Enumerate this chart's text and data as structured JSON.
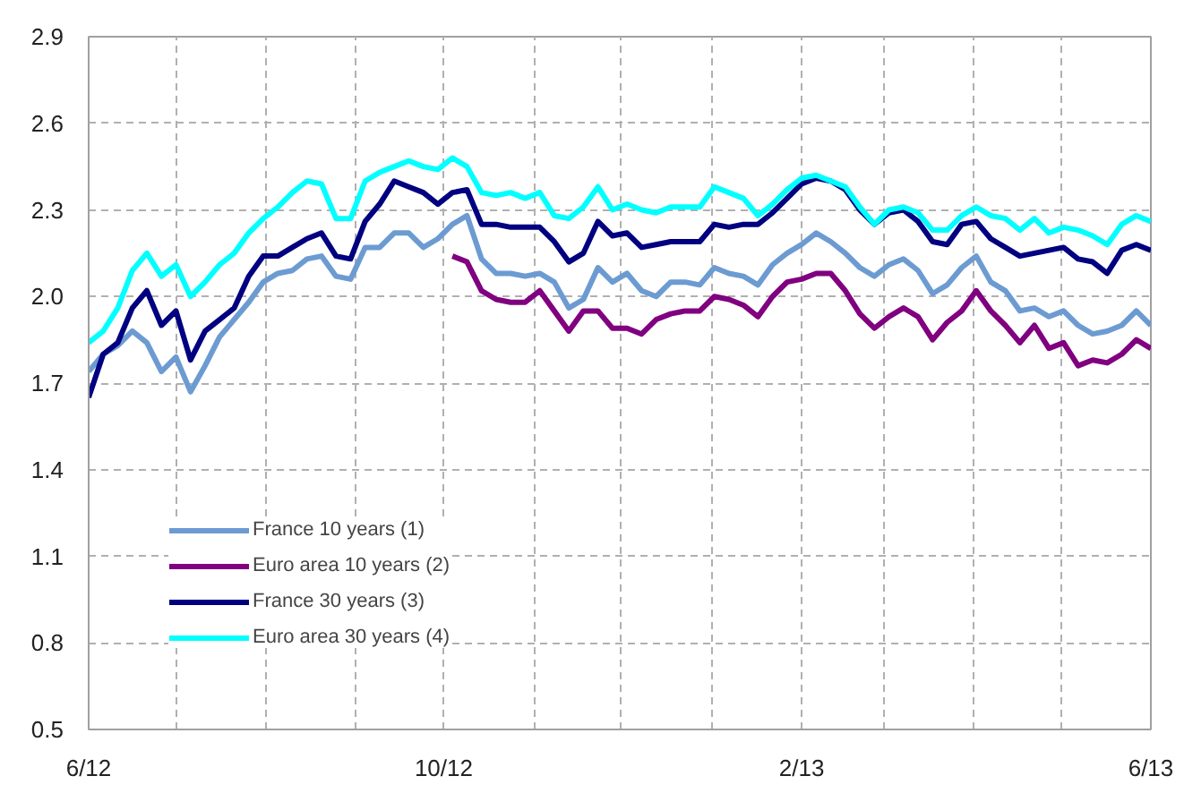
{
  "chart_data": {
    "type": "line",
    "x": [
      "2012-06-01",
      "2012-06-06",
      "2012-06-11",
      "2012-06-16",
      "2012-06-21",
      "2012-06-26",
      "2012-07-01",
      "2012-07-06",
      "2012-07-11",
      "2012-07-16",
      "2012-07-21",
      "2012-07-26",
      "2012-07-31",
      "2012-08-05",
      "2012-08-10",
      "2012-08-15",
      "2012-08-20",
      "2012-08-25",
      "2012-08-30",
      "2012-09-04",
      "2012-09-09",
      "2012-09-14",
      "2012-09-19",
      "2012-09-24",
      "2012-09-29",
      "2012-10-04",
      "2012-10-09",
      "2012-10-14",
      "2012-10-19",
      "2012-10-24",
      "2012-10-29",
      "2012-11-03",
      "2012-11-08",
      "2012-11-13",
      "2012-11-18",
      "2012-11-23",
      "2012-11-28",
      "2012-12-03",
      "2012-12-08",
      "2012-12-13",
      "2012-12-18",
      "2012-12-23",
      "2012-12-28",
      "2013-01-02",
      "2013-01-07",
      "2013-01-12",
      "2013-01-17",
      "2013-01-22",
      "2013-01-27",
      "2013-02-01",
      "2013-02-06",
      "2013-02-11",
      "2013-02-16",
      "2013-02-21",
      "2013-02-26",
      "2013-03-03",
      "2013-03-08",
      "2013-03-13",
      "2013-03-18",
      "2013-03-23",
      "2013-03-28",
      "2013-04-02",
      "2013-04-07",
      "2013-04-12",
      "2013-04-17",
      "2013-04-22",
      "2013-04-27",
      "2013-05-02",
      "2013-05-07",
      "2013-05-12",
      "2013-05-17",
      "2013-05-22",
      "2013-05-27",
      "2013-06-01"
    ],
    "series": [
      {
        "name": "France 10 years (1)",
        "color": "#6c9bd2",
        "values": [
          1.74,
          1.8,
          1.83,
          1.88,
          1.84,
          1.74,
          1.79,
          1.67,
          1.76,
          1.86,
          1.92,
          1.98,
          2.05,
          2.08,
          2.09,
          2.13,
          2.14,
          2.07,
          2.06,
          2.17,
          2.17,
          2.22,
          2.22,
          2.17,
          2.2,
          2.25,
          2.28,
          2.13,
          2.08,
          2.08,
          2.07,
          2.08,
          2.05,
          1.96,
          1.99,
          2.1,
          2.05,
          2.08,
          2.02,
          2.0,
          2.05,
          2.05,
          2.04,
          2.1,
          2.08,
          2.07,
          2.04,
          2.11,
          2.15,
          2.18,
          2.22,
          2.19,
          2.15,
          2.1,
          2.07,
          2.11,
          2.13,
          2.09,
          2.01,
          2.04,
          2.1,
          2.14,
          2.05,
          2.02,
          1.95,
          1.96,
          1.93,
          1.95,
          1.9,
          1.87,
          1.88,
          1.9,
          1.95,
          1.9
        ]
      },
      {
        "name": "Euro area 10 years (2)",
        "color": "#800080",
        "values": [
          null,
          null,
          null,
          null,
          null,
          null,
          null,
          null,
          null,
          null,
          null,
          null,
          null,
          null,
          null,
          null,
          null,
          null,
          null,
          null,
          null,
          null,
          null,
          null,
          null,
          2.14,
          2.12,
          2.02,
          1.99,
          1.98,
          1.98,
          2.02,
          1.95,
          1.88,
          1.95,
          1.95,
          1.89,
          1.89,
          1.87,
          1.92,
          1.94,
          1.95,
          1.95,
          2.0,
          1.99,
          1.97,
          1.93,
          2.0,
          2.05,
          2.06,
          2.08,
          2.08,
          2.02,
          1.94,
          1.89,
          1.93,
          1.96,
          1.93,
          1.85,
          1.91,
          1.95,
          2.02,
          1.95,
          1.9,
          1.84,
          1.9,
          1.82,
          1.84,
          1.76,
          1.78,
          1.77,
          1.8,
          1.85,
          1.82
        ]
      },
      {
        "name": "France 30 years (3)",
        "color": "#000080",
        "values": [
          1.65,
          1.8,
          1.84,
          1.96,
          2.02,
          1.9,
          1.95,
          1.78,
          1.88,
          1.92,
          1.96,
          2.07,
          2.14,
          2.14,
          2.17,
          2.2,
          2.22,
          2.14,
          2.13,
          2.26,
          2.32,
          2.4,
          2.38,
          2.36,
          2.32,
          2.36,
          2.37,
          2.25,
          2.25,
          2.24,
          2.24,
          2.24,
          2.19,
          2.12,
          2.15,
          2.26,
          2.21,
          2.22,
          2.17,
          2.18,
          2.19,
          2.19,
          2.19,
          2.25,
          2.24,
          2.25,
          2.25,
          2.29,
          2.34,
          2.39,
          2.41,
          2.4,
          2.37,
          2.3,
          2.25,
          2.29,
          2.3,
          2.26,
          2.19,
          2.18,
          2.25,
          2.26,
          2.2,
          2.17,
          2.14,
          2.15,
          2.16,
          2.17,
          2.13,
          2.12,
          2.08,
          2.16,
          2.18,
          2.16
        ]
      },
      {
        "name": "Euro area 30 years (4)",
        "color": "#00ffff",
        "values": [
          1.84,
          1.88,
          1.96,
          2.09,
          2.15,
          2.07,
          2.11,
          2.0,
          2.05,
          2.11,
          2.15,
          2.22,
          2.27,
          2.31,
          2.36,
          2.4,
          2.39,
          2.27,
          2.27,
          2.4,
          2.43,
          2.45,
          2.47,
          2.45,
          2.44,
          2.48,
          2.45,
          2.36,
          2.35,
          2.36,
          2.34,
          2.36,
          2.28,
          2.27,
          2.31,
          2.38,
          2.3,
          2.32,
          2.3,
          2.29,
          2.31,
          2.31,
          2.31,
          2.38,
          2.36,
          2.34,
          2.28,
          2.32,
          2.37,
          2.41,
          2.42,
          2.4,
          2.38,
          2.31,
          2.25,
          2.3,
          2.31,
          2.29,
          2.23,
          2.23,
          2.28,
          2.31,
          2.28,
          2.27,
          2.23,
          2.27,
          2.22,
          2.24,
          2.23,
          2.21,
          2.18,
          2.25,
          2.28,
          2.26
        ]
      }
    ],
    "xlim": [
      "2012-06-01",
      "2013-06-01"
    ],
    "xticks": [
      {
        "value": "2012-06-01",
        "label": "6/12"
      },
      {
        "value": "2012-07-01",
        "label": null
      },
      {
        "value": "2012-08-01",
        "label": null
      },
      {
        "value": "2012-09-01",
        "label": null
      },
      {
        "value": "2012-10-01",
        "label": "10/12"
      },
      {
        "value": "2012-11-01",
        "label": null
      },
      {
        "value": "2012-12-01",
        "label": null
      },
      {
        "value": "2013-01-01",
        "label": null
      },
      {
        "value": "2013-02-01",
        "label": "2/13"
      },
      {
        "value": "2013-03-01",
        "label": null
      },
      {
        "value": "2013-04-01",
        "label": null
      },
      {
        "value": "2013-05-01",
        "label": null
      },
      {
        "value": "2013-06-01",
        "label": "6/13"
      }
    ],
    "ylim": [
      0.5,
      2.9
    ],
    "yticks": [
      0.5,
      0.8,
      1.1,
      1.4,
      1.7,
      {
        "value": 2,
        "label": "2.0"
      },
      2.3,
      2.6,
      2.9
    ],
    "grid": true,
    "legend": "bottom left",
    "marker": "none",
    "line_style": "solid"
  }
}
